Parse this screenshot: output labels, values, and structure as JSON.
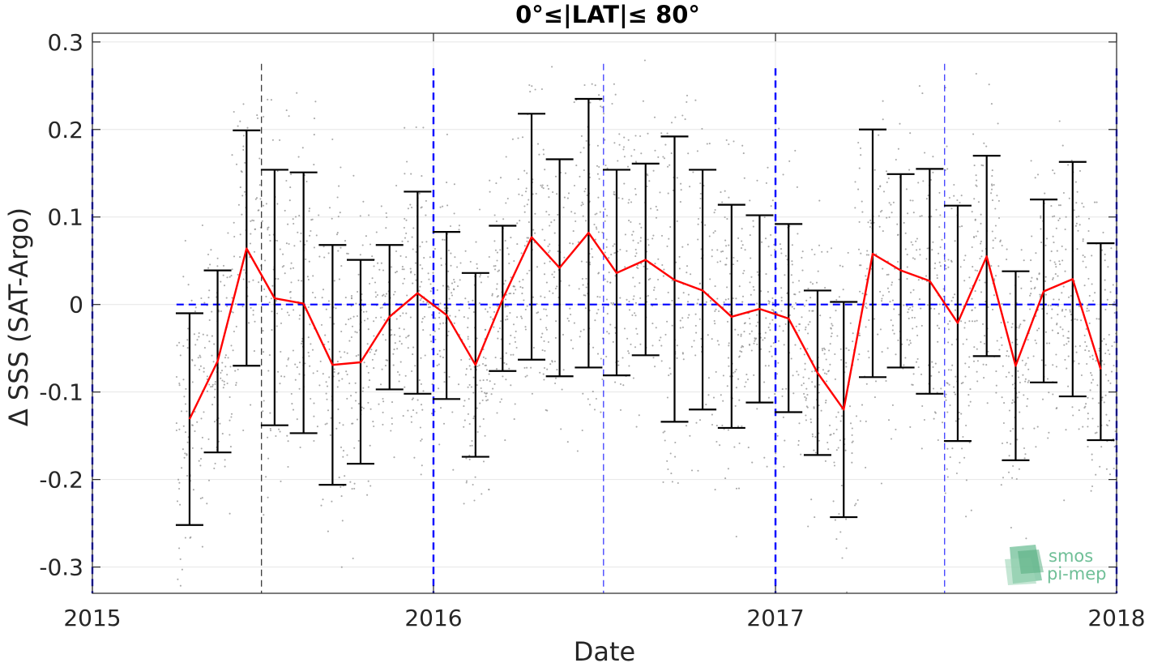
{
  "chart_data": {
    "type": "line",
    "title": "0°≤|LAT|≤ 80°",
    "xlabel": "Date",
    "ylabel": "Δ SSS (SAT-Argo)",
    "xlim": [
      "2015-01-01",
      "2018-01-01"
    ],
    "ylim": [
      -0.33,
      0.31
    ],
    "x_ticks": [
      "2015-01-01",
      "2016-01-01",
      "2017-01-01",
      "2018-01-01"
    ],
    "x_tick_labels": [
      "2015",
      "2016",
      "2017",
      "2018"
    ],
    "y_ticks": [
      -0.3,
      -0.2,
      -0.1,
      0,
      0.1,
      0.2,
      0.3
    ],
    "y_tick_labels": [
      "-0.3",
      "-0.2",
      "-0.1",
      "0",
      "0.1",
      "0.2",
      "0.3"
    ],
    "grid": true,
    "colors": {
      "mean": "#ff0000",
      "errorbar": "#000000",
      "reference": "#0000ff",
      "scatter": "#8c8c8c",
      "grid": "#e6e6e6",
      "logo": "#6fbf97"
    },
    "reference_lines": {
      "zero": 0,
      "year_marks": [
        "2015-01-01",
        "2016-01-01",
        "2017-01-01",
        "2018-01-01"
      ],
      "mid_year_marks": [
        "2015-07-01",
        "2016-07-01",
        "2017-07-01"
      ]
    },
    "series": [
      {
        "type": "errorbar",
        "x": [
          "2015-04-15",
          "2015-05-15",
          "2015-06-15",
          "2015-07-15",
          "2015-08-15",
          "2015-09-15",
          "2015-10-15",
          "2015-11-15",
          "2015-12-15",
          "2016-01-15",
          "2016-02-15",
          "2016-03-15",
          "2016-04-15",
          "2016-05-15",
          "2016-06-15",
          "2016-07-15",
          "2016-08-15",
          "2016-09-15",
          "2016-10-15",
          "2016-11-15",
          "2016-12-15",
          "2017-01-15",
          "2017-02-15",
          "2017-03-15",
          "2017-04-15",
          "2017-05-15",
          "2017-06-15",
          "2017-07-15",
          "2017-08-15",
          "2017-09-15",
          "2017-10-15",
          "2017-11-15",
          "2017-12-15"
        ],
        "mean": [
          -0.131,
          -0.065,
          0.064,
          0.007,
          0.001,
          -0.069,
          -0.066,
          -0.014,
          0.013,
          -0.012,
          -0.069,
          0.006,
          0.077,
          0.042,
          0.082,
          0.036,
          0.051,
          0.028,
          0.016,
          -0.014,
          -0.005,
          -0.016,
          -0.078,
          -0.12,
          0.058,
          0.039,
          0.027,
          -0.021,
          0.055,
          -0.07,
          0.015,
          0.029,
          -0.074
        ],
        "lower": [
          -0.252,
          -0.169,
          -0.07,
          -0.138,
          -0.147,
          -0.206,
          -0.182,
          -0.097,
          -0.102,
          -0.108,
          -0.174,
          -0.076,
          -0.063,
          -0.082,
          -0.072,
          -0.081,
          -0.058,
          -0.134,
          -0.12,
          -0.141,
          -0.112,
          -0.123,
          -0.172,
          -0.243,
          -0.083,
          -0.072,
          -0.102,
          -0.156,
          -0.059,
          -0.178,
          -0.089,
          -0.105,
          -0.155
        ],
        "upper": [
          -0.01,
          0.039,
          0.199,
          0.154,
          0.151,
          0.068,
          0.051,
          0.068,
          0.129,
          0.083,
          0.036,
          0.09,
          0.218,
          0.166,
          0.235,
          0.154,
          0.161,
          0.192,
          0.154,
          0.114,
          0.102,
          0.092,
          0.016,
          0.003,
          0.2,
          0.149,
          0.155,
          0.113,
          0.17,
          0.038,
          0.12,
          0.163,
          0.07
        ]
      }
    ],
    "scatter_points": "dense cloud of individual SAT-Argo collocation differences between 2015-04 and 2018-01, mostly within -0.3 to 0.3"
  },
  "logo": {
    "line1": "smos",
    "line2": "pi-mep"
  }
}
